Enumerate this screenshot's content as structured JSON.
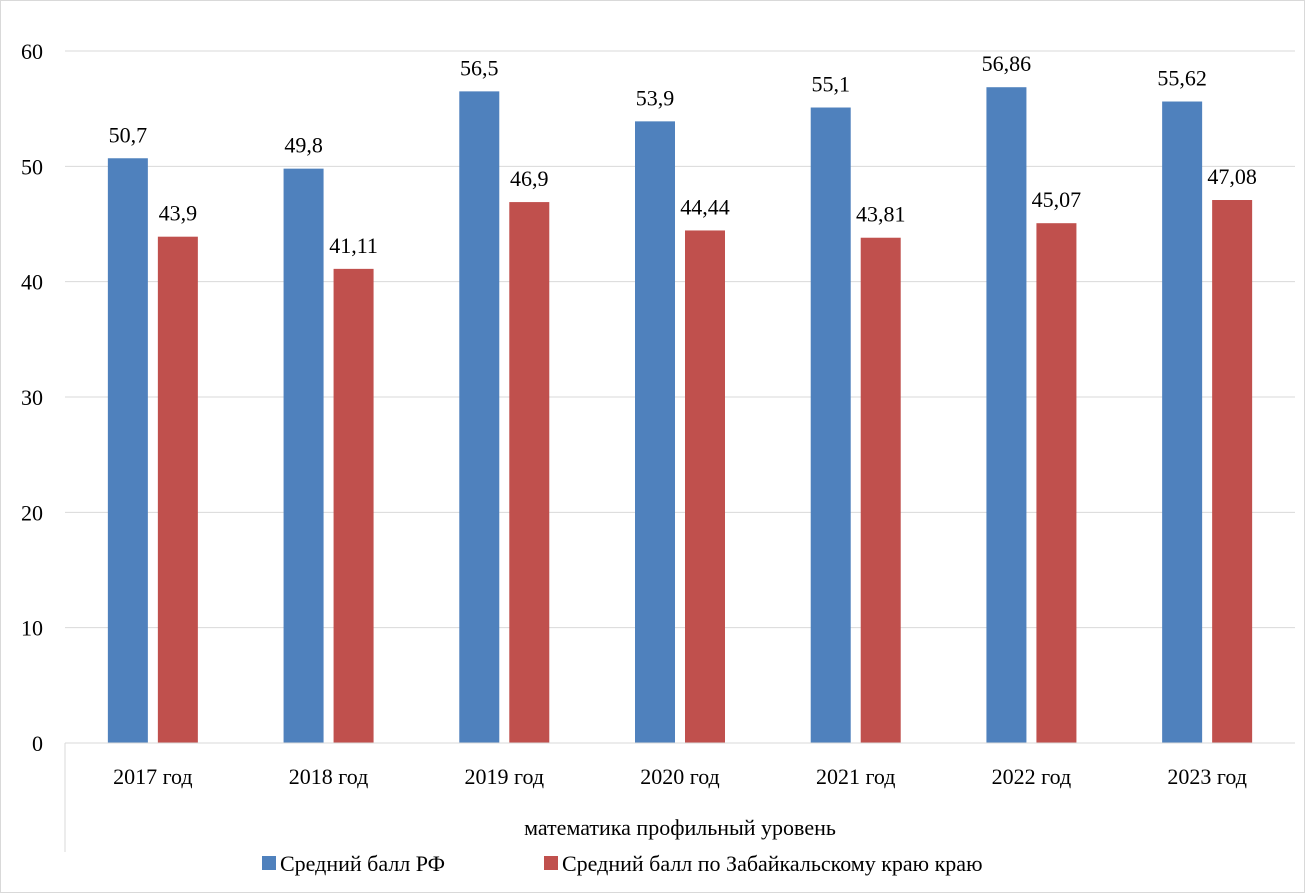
{
  "chart_data": {
    "type": "bar",
    "title": "",
    "xlabel": "",
    "ylabel": "",
    "group_label": "математика профильный уровень",
    "categories": [
      "2017 год",
      "2018 год",
      "2019 год",
      "2020 год",
      "2021 год",
      "2022 год",
      "2023 год"
    ],
    "series": [
      {
        "name": "Средний балл РФ",
        "color": "#4f81bd",
        "values": [
          50.7,
          49.8,
          56.5,
          53.9,
          55.1,
          56.86,
          55.62
        ],
        "labels": [
          "50,7",
          "49,8",
          "56,5",
          "53,9",
          "55,1",
          "56,86",
          "55,62"
        ]
      },
      {
        "name": "Средний балл по Забайкальскому краю краю",
        "color": "#c0504d",
        "values": [
          43.9,
          41.11,
          46.9,
          44.44,
          43.81,
          45.07,
          47.08
        ],
        "labels": [
          "43,9",
          "41,11",
          "46,9",
          "44,44",
          "43,81",
          "45,07",
          "47,08"
        ]
      }
    ],
    "ylim": [
      0,
      60
    ],
    "yticks": [
      0,
      10,
      20,
      30,
      40,
      50,
      60
    ],
    "grid": true,
    "legend_position": "bottom"
  }
}
